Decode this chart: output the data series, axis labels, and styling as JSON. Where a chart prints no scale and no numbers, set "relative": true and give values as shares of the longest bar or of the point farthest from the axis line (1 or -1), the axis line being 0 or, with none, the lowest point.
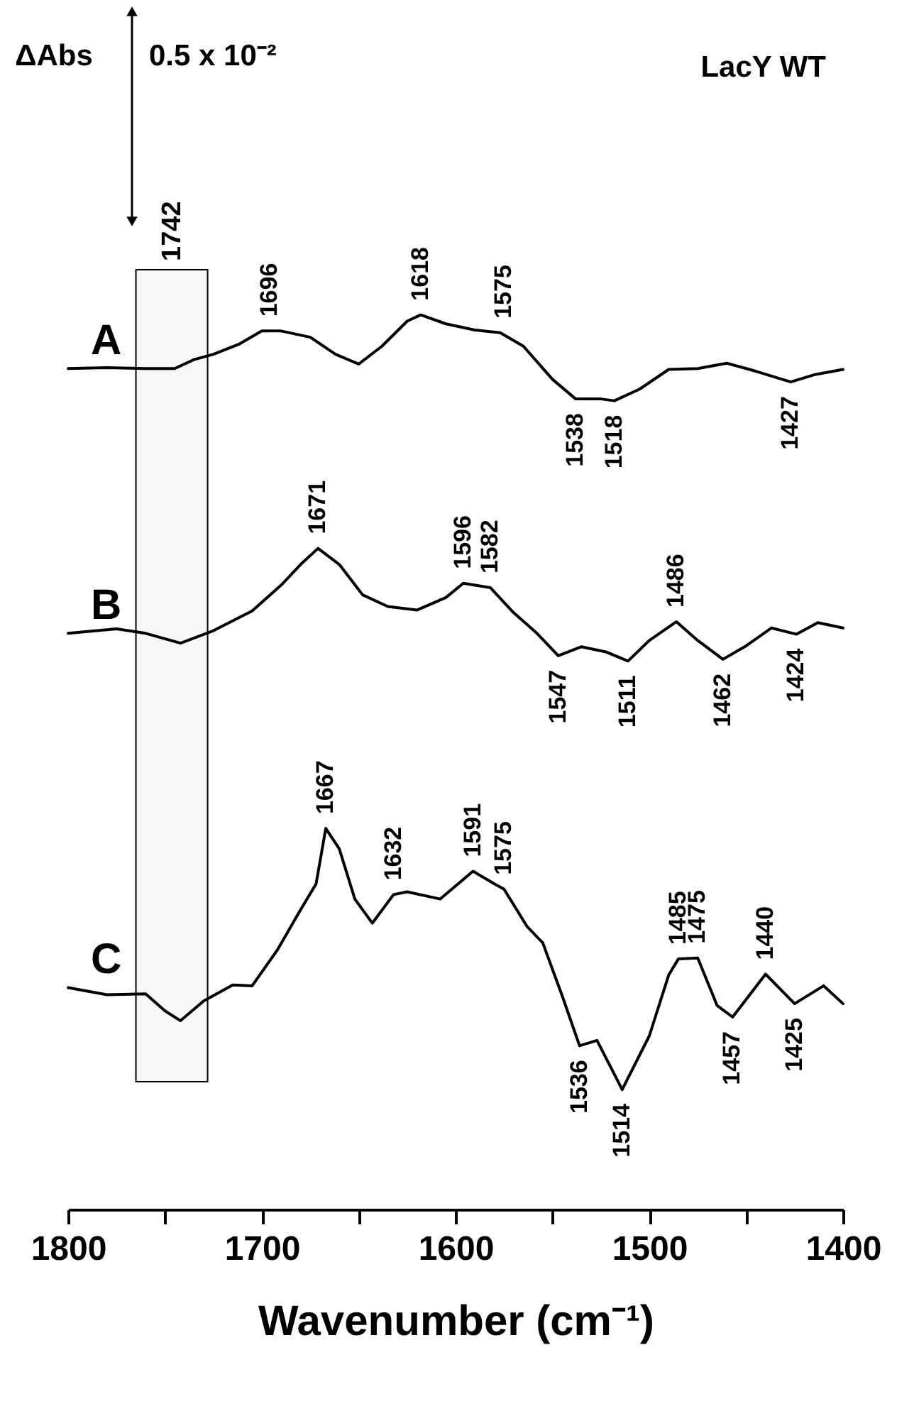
{
  "chart_data": {
    "type": "line",
    "title": "LacY WT",
    "xlabel": "Wavenumber (cm⁻¹)",
    "relative": true,
    "xlim": [
      1800,
      1400
    ],
    "xticks": [
      1800,
      {
        "value": 1750,
        "label": null
      },
      1700,
      {
        "value": 1650,
        "label": null
      },
      1600,
      {
        "value": 1550,
        "label": null
      },
      1500,
      {
        "value": 1450,
        "label": null
      },
      1400
    ],
    "series": [
      {
        "name": "A",
        "color": "#000000",
        "x": [
          1800,
          1780,
          1760,
          1745,
          1735,
          1725,
          1712,
          1700,
          1690,
          1675,
          1662,
          1650,
          1638,
          1625,
          1618,
          1605,
          1590,
          1577,
          1565,
          1550,
          1538,
          1525,
          1518,
          1505,
          1490,
          1475,
          1460,
          1445,
          1427,
          1415,
          1400
        ],
        "values": [
          0.94,
          0.941,
          0.94,
          0.94,
          0.95,
          0.956,
          0.967,
          0.982,
          0.982,
          0.975,
          0.956,
          0.945,
          0.965,
          0.993,
          1.0,
          0.99,
          0.983,
          0.98,
          0.965,
          0.928,
          0.906,
          0.906,
          0.904,
          0.917,
          0.939,
          0.94,
          0.946,
          0.937,
          0.925,
          0.933,
          0.939
        ]
      },
      {
        "name": "B",
        "color": "#000000",
        "x": [
          1800,
          1775,
          1760,
          1742,
          1725,
          1705,
          1690,
          1680,
          1671,
          1660,
          1648,
          1635,
          1620,
          1605,
          1596,
          1582,
          1570,
          1558,
          1547,
          1535,
          1522,
          1511,
          1500,
          1486,
          1475,
          1462,
          1450,
          1437,
          1424,
          1413,
          1400
        ],
        "values": [
          0.644,
          0.649,
          0.644,
          0.633,
          0.647,
          0.669,
          0.698,
          0.721,
          0.739,
          0.721,
          0.687,
          0.674,
          0.67,
          0.684,
          0.7,
          0.695,
          0.667,
          0.644,
          0.619,
          0.629,
          0.623,
          0.613,
          0.636,
          0.657,
          0.636,
          0.615,
          0.63,
          0.65,
          0.643,
          0.656,
          0.65
        ]
      },
      {
        "name": "C",
        "color": "#000000",
        "x": [
          1800,
          1780,
          1760,
          1750,
          1742,
          1730,
          1715,
          1705,
          1692,
          1680,
          1672,
          1667,
          1660,
          1652,
          1643,
          1632,
          1625,
          1608,
          1591,
          1580,
          1575,
          1563,
          1555,
          1545,
          1536,
          1527,
          1514,
          1500,
          1490,
          1485,
          1475,
          1465,
          1457,
          1440,
          1425,
          1410,
          1400
        ],
        "values": [
          0.248,
          0.24,
          0.241,
          0.222,
          0.211,
          0.233,
          0.251,
          0.25,
          0.29,
          0.335,
          0.364,
          0.426,
          0.403,
          0.347,
          0.32,
          0.352,
          0.355,
          0.347,
          0.378,
          0.364,
          0.358,
          0.316,
          0.298,
          0.239,
          0.183,
          0.189,
          0.134,
          0.194,
          0.262,
          0.28,
          0.281,
          0.228,
          0.215,
          0.263,
          0.23,
          0.25,
          0.23
        ]
      }
    ],
    "bands": [
      {
        "axis": "x",
        "from": 1765,
        "to": 1728,
        "label": "1742"
      }
    ],
    "annotations": [
      "ΔAbs",
      "0.5 x 10⁻²",
      {
        "text": "1696",
        "x": 1696,
        "y": 0.982
      },
      {
        "text": "1618",
        "x": 1618,
        "y": 1.0
      },
      {
        "text": "1575",
        "x": 1575,
        "y": 0.98
      },
      {
        "text": "1538",
        "x": 1538,
        "y": 0.906
      },
      {
        "text": "1518",
        "x": 1518,
        "y": 0.904
      },
      {
        "text": "1427",
        "x": 1427,
        "y": 0.925
      },
      {
        "text": "1671",
        "x": 1671,
        "y": 0.739
      },
      {
        "text": "1596",
        "x": 1596,
        "y": 0.7
      },
      {
        "text": "1582",
        "x": 1582,
        "y": 0.695
      },
      {
        "text": "1486",
        "x": 1486,
        "y": 0.657
      },
      {
        "text": "1547",
        "x": 1547,
        "y": 0.619
      },
      {
        "text": "1511",
        "x": 1511,
        "y": 0.613
      },
      {
        "text": "1462",
        "x": 1462,
        "y": 0.615
      },
      {
        "text": "1424",
        "x": 1424,
        "y": 0.643
      },
      {
        "text": "1667",
        "x": 1667,
        "y": 0.426
      },
      {
        "text": "1632",
        "x": 1632,
        "y": 0.352
      },
      {
        "text": "1591",
        "x": 1591,
        "y": 0.378
      },
      {
        "text": "1575",
        "x": 1575,
        "y": 0.358
      },
      {
        "text": "1485",
        "x": 1485,
        "y": 0.28
      },
      {
        "text": "1475",
        "x": 1475,
        "y": 0.281
      },
      {
        "text": "1440",
        "x": 1440,
        "y": 0.263
      },
      {
        "text": "1536",
        "x": 1536,
        "y": 0.183
      },
      {
        "text": "1514",
        "x": 1514,
        "y": 0.134
      },
      {
        "text": "1457",
        "x": 1457,
        "y": 0.215
      },
      {
        "text": "1425",
        "x": 1425,
        "y": 0.23
      }
    ]
  }
}
